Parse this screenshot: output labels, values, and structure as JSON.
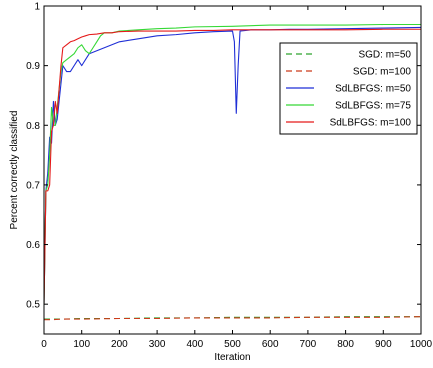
{
  "chart_data": {
    "type": "line",
    "title": "",
    "xlabel": "Iteration",
    "ylabel": "Percent correctly classified",
    "xlim": [
      0,
      1000
    ],
    "ylim": [
      0.45,
      1.0
    ],
    "xticks": [
      0,
      100,
      200,
      300,
      400,
      500,
      600,
      700,
      800,
      900,
      1000
    ],
    "yticks": [
      0.5,
      0.6,
      0.7,
      0.8,
      0.9,
      1.0
    ],
    "ytick_labels": [
      "0.5",
      "0.6",
      "0.7",
      "0.8",
      "0.9",
      "1"
    ],
    "grid": false,
    "legend_position": "top-right",
    "series": [
      {
        "name": "SGD: m=50",
        "color": "#2fa32f",
        "line_style": "dashed",
        "x": [
          0,
          20,
          50,
          100,
          200,
          300,
          400,
          500,
          600,
          700,
          800,
          900,
          1000
        ],
        "y": [
          0.475,
          0.475,
          0.475,
          0.476,
          0.476,
          0.477,
          0.477,
          0.478,
          0.478,
          0.478,
          0.479,
          0.479,
          0.479
        ]
      },
      {
        "name": "SGD: m=100",
        "color": "#cc3b1a",
        "line_style": "dashed",
        "x": [
          0,
          20,
          50,
          100,
          200,
          300,
          400,
          500,
          600,
          700,
          800,
          900,
          1000
        ],
        "y": [
          0.474,
          0.474,
          0.475,
          0.475,
          0.476,
          0.476,
          0.477,
          0.477,
          0.477,
          0.478,
          0.478,
          0.478,
          0.479
        ]
      },
      {
        "name": "SdLBFGS: m=50",
        "color": "#1f2fd6",
        "line_style": "solid",
        "x": [
          0,
          5,
          10,
          15,
          20,
          25,
          30,
          35,
          40,
          45,
          50,
          60,
          70,
          80,
          90,
          100,
          120,
          140,
          160,
          180,
          200,
          250,
          300,
          350,
          400,
          450,
          500,
          505,
          510,
          515,
          520,
          550,
          600,
          650,
          700,
          800,
          900,
          1000
        ],
        "y": [
          0.5,
          0.69,
          0.72,
          0.78,
          0.77,
          0.84,
          0.8,
          0.81,
          0.84,
          0.87,
          0.9,
          0.89,
          0.89,
          0.9,
          0.91,
          0.9,
          0.92,
          0.925,
          0.93,
          0.935,
          0.94,
          0.945,
          0.95,
          0.952,
          0.955,
          0.957,
          0.958,
          0.94,
          0.82,
          0.9,
          0.958,
          0.96,
          0.96,
          0.961,
          0.961,
          0.962,
          0.963,
          0.964
        ]
      },
      {
        "name": "SdLBFGS: m=75",
        "color": "#36d836",
        "line_style": "solid",
        "x": [
          0,
          5,
          10,
          15,
          20,
          25,
          30,
          35,
          40,
          45,
          50,
          60,
          70,
          80,
          90,
          100,
          110,
          120,
          130,
          140,
          150,
          160,
          180,
          200,
          250,
          300,
          350,
          400,
          500,
          600,
          700,
          800,
          900,
          1000
        ],
        "y": [
          0.5,
          0.69,
          0.7,
          0.75,
          0.83,
          0.8,
          0.8,
          0.83,
          0.86,
          0.89,
          0.905,
          0.91,
          0.915,
          0.92,
          0.93,
          0.935,
          0.925,
          0.92,
          0.93,
          0.94,
          0.95,
          0.955,
          0.955,
          0.958,
          0.96,
          0.962,
          0.963,
          0.965,
          0.966,
          0.968,
          0.968,
          0.968,
          0.969,
          0.969
        ]
      },
      {
        "name": "SdLBFGS: m=100",
        "color": "#e51a1a",
        "line_style": "solid",
        "x": [
          0,
          5,
          10,
          15,
          20,
          25,
          30,
          35,
          40,
          45,
          50,
          60,
          70,
          80,
          90,
          100,
          110,
          120,
          140,
          160,
          180,
          200,
          250,
          300,
          350,
          400,
          450,
          500,
          600,
          700,
          800,
          900,
          1000
        ],
        "y": [
          0.5,
          0.69,
          0.69,
          0.7,
          0.79,
          0.8,
          0.84,
          0.82,
          0.86,
          0.9,
          0.93,
          0.935,
          0.94,
          0.942,
          0.945,
          0.948,
          0.95,
          0.952,
          0.953,
          0.955,
          0.955,
          0.957,
          0.958,
          0.958,
          0.958,
          0.959,
          0.959,
          0.96,
          0.96,
          0.96,
          0.96,
          0.961,
          0.961
        ]
      }
    ]
  }
}
